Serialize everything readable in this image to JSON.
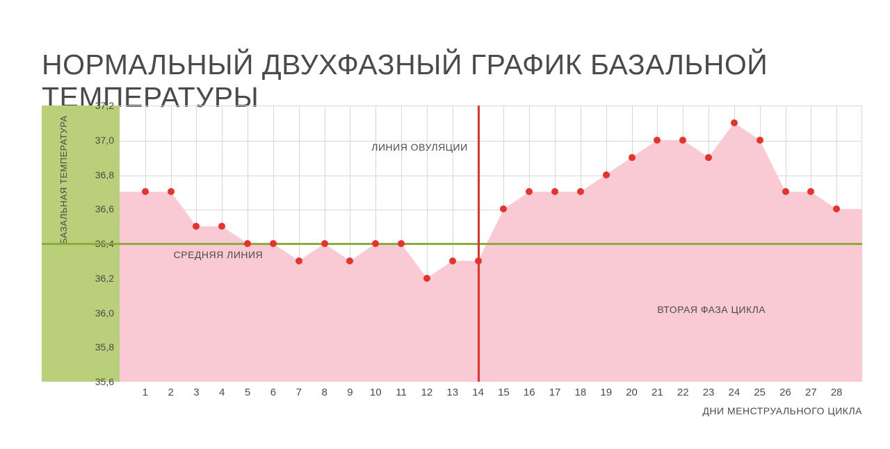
{
  "title": "НОРМАЛЬНЫЙ ДВУХФАЗНЫЙ ГРАФИК БАЗАЛЬНОЙ ТЕМПЕРАТУРЫ",
  "chart": {
    "type": "area",
    "yaxis": {
      "title": "БАЗАЛЬНАЯ ТЕМПЕРАТУРА",
      "min": 35.6,
      "max": 37.2,
      "step": 0.2,
      "ticks": [
        "37,2",
        "37,0",
        "36,8",
        "36,6",
        "36,4",
        "36,2",
        "36,0",
        "35,8",
        "35,6"
      ],
      "tick_values": [
        37.2,
        37.0,
        36.8,
        36.6,
        36.4,
        36.2,
        36.0,
        35.8,
        35.6
      ],
      "title_fontsize": 13,
      "label_fontsize": 14
    },
    "xaxis": {
      "title": "ДНИ МЕНСТРУАЛЬНОГО ЦИКЛА",
      "ticks": [
        "1",
        "2",
        "3",
        "4",
        "5",
        "6",
        "7",
        "8",
        "9",
        "10",
        "11",
        "12",
        "13",
        "14",
        "15",
        "16",
        "17",
        "18",
        "19",
        "20",
        "21",
        "22",
        "23",
        "24",
        "25",
        "26",
        "27",
        "28"
      ],
      "title_fontsize": 14,
      "label_fontsize": 15
    },
    "data_points": [
      {
        "x": 1,
        "y": 36.7
      },
      {
        "x": 2,
        "y": 36.7
      },
      {
        "x": 3,
        "y": 36.5
      },
      {
        "x": 4,
        "y": 36.5
      },
      {
        "x": 5,
        "y": 36.4
      },
      {
        "x": 6,
        "y": 36.4
      },
      {
        "x": 7,
        "y": 36.3
      },
      {
        "x": 8,
        "y": 36.4
      },
      {
        "x": 9,
        "y": 36.3
      },
      {
        "x": 10,
        "y": 36.4
      },
      {
        "x": 11,
        "y": 36.4
      },
      {
        "x": 12,
        "y": 36.2
      },
      {
        "x": 13,
        "y": 36.3
      },
      {
        "x": 14,
        "y": 36.3
      },
      {
        "x": 15,
        "y": 36.6
      },
      {
        "x": 16,
        "y": 36.7
      },
      {
        "x": 17,
        "y": 36.7
      },
      {
        "x": 18,
        "y": 36.7
      },
      {
        "x": 19,
        "y": 36.8
      },
      {
        "x": 20,
        "y": 36.9
      },
      {
        "x": 21,
        "y": 37.0
      },
      {
        "x": 22,
        "y": 37.0
      },
      {
        "x": 23,
        "y": 36.9
      },
      {
        "x": 24,
        "y": 37.1
      },
      {
        "x": 25,
        "y": 37.0
      },
      {
        "x": 26,
        "y": 36.7
      },
      {
        "x": 27,
        "y": 36.7
      },
      {
        "x": 28,
        "y": 36.6
      }
    ],
    "mean_line": {
      "y": 36.4,
      "label": "СРЕДНЯЯ ЛИНИЯ",
      "color": "#8aac3a",
      "width": 3
    },
    "ovulation_line": {
      "x": 14,
      "label": "ЛИНИЯ ОВУЛЯЦИИ",
      "color": "#e8322e",
      "width": 3
    },
    "phase2_label": "ВТОРАЯ ФАЗА ЦИКЛА",
    "colors": {
      "area_fill": "#f9c9d4",
      "point_fill": "#e8322e",
      "grid": "#d7d7d7",
      "left_band": "#bacf7a",
      "background": "#ffffff",
      "text": "#4a4a4a",
      "title_text": "#4a4a4a"
    },
    "marker": {
      "style": "circle",
      "radius": 5
    },
    "annotation_fontsize": 14,
    "title_fontsize": 41
  }
}
